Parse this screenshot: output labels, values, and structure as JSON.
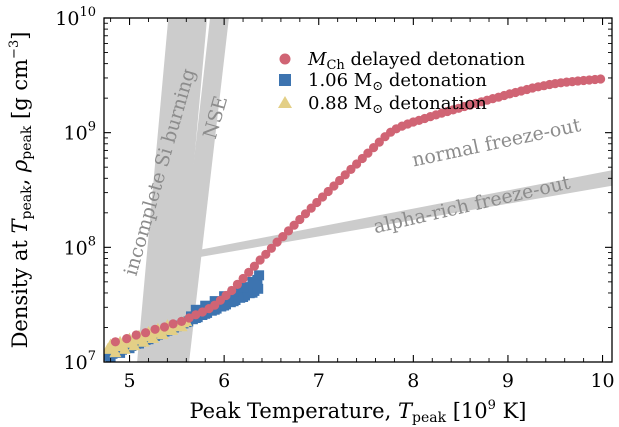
{
  "chart_data": {
    "type": "scatter",
    "xlabel": {
      "main": "Peak Temperature, ",
      "var": "T",
      "sub": "peak",
      "unit": " [10",
      "unit_sup": "9",
      "unit_end": " K]"
    },
    "ylabel": {
      "main": "Density at ",
      "var": "T",
      "sub": "peak",
      "sep": ", ",
      "rho": "ρ",
      "rho_sub": "peak",
      "unit": " [g cm",
      "unit_sup": "−3",
      "unit_end": "]"
    },
    "xlim": [
      4.73,
      10.1
    ],
    "ylim": [
      10000000,
      10000000000
    ],
    "yscale": "log",
    "xticks": [
      {
        "value": 5,
        "label": "5"
      },
      {
        "value": 6,
        "label": "6"
      },
      {
        "value": 7,
        "label": "7"
      },
      {
        "value": 8,
        "label": "8"
      },
      {
        "value": 9,
        "label": "9"
      },
      {
        "value": 10,
        "label": "10"
      }
    ],
    "yticks": [
      {
        "value": 10000000,
        "base": "10",
        "exp": "7"
      },
      {
        "value": 100000000,
        "base": "10",
        "exp": "8"
      },
      {
        "value": 1000000000,
        "base": "10",
        "exp": "9"
      },
      {
        "value": 10000000000,
        "base": "10",
        "exp": "10"
      }
    ],
    "legend_position": "top-right",
    "series": [
      {
        "name": "M",
        "name_sub": "Ch",
        "name_rest": " delayed detonation",
        "color": "#d06474",
        "marker": "circle",
        "points": [
          [
            4.85,
            15000000
          ],
          [
            4.97,
            16000000
          ],
          [
            5.07,
            17200000
          ],
          [
            5.17,
            18000000
          ],
          [
            5.27,
            19300000
          ],
          [
            5.37,
            20200000
          ],
          [
            5.46,
            21500000
          ],
          [
            5.55,
            22600000
          ],
          [
            5.63,
            24200000
          ],
          [
            5.7,
            25800000
          ],
          [
            5.77,
            27300000
          ],
          [
            5.84,
            29200000
          ],
          [
            5.9,
            31300000
          ],
          [
            5.96,
            34500000
          ],
          [
            6.02,
            38000000
          ],
          [
            6.08,
            42000000
          ],
          [
            6.14,
            47500000
          ],
          [
            6.2,
            53500000
          ],
          [
            6.26,
            60500000
          ],
          [
            6.32,
            68500000
          ],
          [
            6.38,
            77500000
          ],
          [
            6.44,
            87000000
          ],
          [
            6.5,
            98000000
          ],
          [
            6.56,
            111000000
          ],
          [
            6.62,
            124000000
          ],
          [
            6.68,
            139000000
          ],
          [
            6.74,
            156000000
          ],
          [
            6.8,
            175000000
          ],
          [
            6.86,
            196000000
          ],
          [
            6.92,
            220000000
          ],
          [
            6.98,
            246000000
          ],
          [
            7.04,
            275000000
          ],
          [
            7.1,
            307000000
          ],
          [
            7.16,
            343000000
          ],
          [
            7.22,
            383000000
          ],
          [
            7.28,
            428000000
          ],
          [
            7.34,
            478000000
          ],
          [
            7.4,
            533000000
          ],
          [
            7.46,
            595000000
          ],
          [
            7.52,
            664000000
          ],
          [
            7.58,
            741000000
          ],
          [
            7.64,
            827000000
          ],
          [
            7.7,
            923000000
          ],
          [
            7.76,
            1010000000
          ],
          [
            7.82,
            1080000000
          ],
          [
            7.88,
            1140000000
          ],
          [
            7.94,
            1190000000
          ],
          [
            8.0,
            1240000000
          ],
          [
            8.06,
            1280000000
          ],
          [
            8.12,
            1330000000
          ],
          [
            8.18,
            1380000000
          ],
          [
            8.24,
            1430000000
          ],
          [
            8.3,
            1480000000
          ],
          [
            8.36,
            1530000000
          ],
          [
            8.42,
            1580000000
          ],
          [
            8.48,
            1630000000
          ],
          [
            8.54,
            1690000000
          ],
          [
            8.6,
            1740000000
          ],
          [
            8.66,
            1800000000
          ],
          [
            8.72,
            1860000000
          ],
          [
            8.78,
            1920000000
          ],
          [
            8.84,
            1980000000
          ],
          [
            8.9,
            2040000000
          ],
          [
            8.96,
            2110000000
          ],
          [
            9.02,
            2180000000
          ],
          [
            9.08,
            2240000000
          ],
          [
            9.14,
            2310000000
          ],
          [
            9.2,
            2380000000
          ],
          [
            9.26,
            2450000000
          ],
          [
            9.32,
            2510000000
          ],
          [
            9.38,
            2570000000
          ],
          [
            9.44,
            2630000000
          ],
          [
            9.5,
            2680000000
          ],
          [
            9.56,
            2720000000
          ],
          [
            9.62,
            2760000000
          ],
          [
            9.68,
            2790000000
          ],
          [
            9.74,
            2820000000
          ],
          [
            9.8,
            2850000000
          ],
          [
            9.86,
            2880000000
          ],
          [
            9.92,
            2910000000
          ],
          [
            9.98,
            2940000000
          ]
        ]
      },
      {
        "name": "1.06 M",
        "name_sub": "⊙",
        "name_rest": " detonation",
        "color": "#3d74b0",
        "marker": "square",
        "points": [
          [
            4.77,
            11300000
          ],
          [
            4.82,
            11800000
          ],
          [
            4.87,
            12300000
          ],
          [
            4.92,
            12800000
          ],
          [
            4.97,
            13300000
          ],
          [
            5.02,
            13800000
          ],
          [
            5.07,
            14400000
          ],
          [
            5.12,
            15000000
          ],
          [
            5.17,
            15600000
          ],
          [
            5.22,
            16200000
          ],
          [
            5.27,
            16900000
          ],
          [
            5.32,
            17600000
          ],
          [
            5.37,
            18400000
          ],
          [
            5.42,
            19200000
          ],
          [
            5.47,
            20000000
          ],
          [
            5.52,
            20800000
          ],
          [
            5.57,
            21700000
          ],
          [
            5.62,
            22600000
          ],
          [
            5.67,
            23600000
          ],
          [
            5.72,
            24600000
          ],
          [
            5.77,
            25700000
          ],
          [
            5.82,
            26800000
          ],
          [
            5.87,
            28000000
          ],
          [
            5.92,
            29200000
          ],
          [
            5.97,
            30500000
          ],
          [
            6.02,
            31800000
          ],
          [
            6.07,
            33200000
          ],
          [
            6.12,
            34700000
          ],
          [
            6.17,
            36300000
          ],
          [
            6.22,
            38000000
          ],
          [
            6.27,
            39800000
          ],
          [
            6.32,
            41700000
          ],
          [
            6.36,
            43500000
          ],
          [
            4.8,
            11000000
          ],
          [
            4.9,
            12000000
          ],
          [
            5.0,
            13200000
          ],
          [
            5.1,
            14500000
          ],
          [
            5.2,
            15800000
          ],
          [
            5.3,
            17300000
          ],
          [
            5.4,
            18800000
          ],
          [
            5.5,
            20500000
          ],
          [
            5.6,
            22300000
          ],
          [
            5.7,
            24200000
          ],
          [
            5.8,
            26300000
          ],
          [
            5.9,
            28600000
          ],
          [
            6.0,
            31100000
          ],
          [
            6.1,
            33900000
          ],
          [
            6.2,
            36900000
          ],
          [
            6.3,
            40200000
          ],
          [
            5.65,
            25000000
          ],
          [
            5.75,
            27000000
          ],
          [
            5.85,
            29500000
          ],
          [
            5.95,
            32000000
          ],
          [
            6.05,
            35000000
          ],
          [
            6.15,
            38500000
          ],
          [
            6.25,
            42500000
          ],
          [
            6.35,
            47000000
          ],
          [
            6.35,
            52000000
          ],
          [
            6.37,
            57000000
          ],
          [
            6.3,
            50000000
          ],
          [
            6.2,
            45000000
          ],
          [
            6.1,
            41000000
          ],
          [
            6.0,
            37500000
          ],
          [
            5.9,
            34000000
          ],
          [
            5.8,
            31000000
          ],
          [
            5.7,
            28500000
          ]
        ]
      },
      {
        "name": "0.88 M",
        "name_sub": "⊙",
        "name_rest": " detonation",
        "color": "#e3cf86",
        "marker": "triangle",
        "points": [
          [
            4.77,
            13000000
          ],
          [
            4.82,
            13400000
          ],
          [
            4.87,
            13800000
          ],
          [
            4.92,
            14200000
          ],
          [
            4.97,
            14700000
          ],
          [
            5.02,
            15200000
          ],
          [
            5.07,
            15700000
          ],
          [
            5.12,
            16200000
          ],
          [
            5.17,
            16800000
          ],
          [
            5.22,
            17400000
          ],
          [
            5.27,
            18000000
          ],
          [
            5.32,
            18600000
          ],
          [
            5.37,
            19300000
          ],
          [
            5.42,
            20000000
          ],
          [
            5.47,
            20700000
          ],
          [
            5.52,
            21400000
          ],
          [
            5.57,
            22200000
          ],
          [
            5.6,
            22800000
          ],
          [
            4.8,
            14200000
          ],
          [
            4.9,
            15000000
          ],
          [
            5.0,
            16000000
          ],
          [
            5.1,
            17000000
          ],
          [
            5.2,
            18300000
          ],
          [
            5.3,
            19500000
          ],
          [
            5.4,
            21000000
          ],
          [
            4.85,
            12200000
          ],
          [
            4.95,
            13000000
          ],
          [
            5.05,
            14000000
          ],
          [
            5.15,
            15000000
          ],
          [
            5.25,
            16200000
          ],
          [
            5.35,
            17500000
          ],
          [
            5.45,
            19000000
          ],
          [
            5.55,
            20500000
          ]
        ]
      }
    ],
    "regions": [
      {
        "name": "Si-burning band",
        "color": "#cccccc",
        "polygon": [
          [
            5.08,
            10000000
          ],
          [
            5.49,
            10000000
          ],
          [
            5.82,
            10000000000
          ],
          [
            5.41,
            10000000000
          ]
        ]
      },
      {
        "name": "NSE band",
        "color": "#cccccc",
        "polygon": [
          [
            5.44,
            10000000
          ],
          [
            5.63,
            10000000
          ],
          [
            6.05,
            10000000000
          ],
          [
            5.85,
            10000000000
          ]
        ]
      },
      {
        "name": "freeze-out wedge",
        "color": "#cccccc",
        "polygon": [
          [
            5.58,
            78000000
          ],
          [
            5.62,
            91000000
          ],
          [
            10.1,
            470000000
          ],
          [
            10.1,
            345000000
          ]
        ]
      }
    ],
    "region_labels": [
      {
        "text": "incomplete Si burning",
        "x": 5.33,
        "y": 450000000,
        "angle": -74
      },
      {
        "text": "NSE",
        "x": 5.92,
        "y": 1350000000,
        "angle": -74
      },
      {
        "text": "normal freeze-out",
        "x": 8.88,
        "y": 800000000,
        "angle": -12
      },
      {
        "text": "alpha-rich freeze-out",
        "x": 8.62,
        "y": 230000000,
        "angle": -13
      }
    ]
  }
}
